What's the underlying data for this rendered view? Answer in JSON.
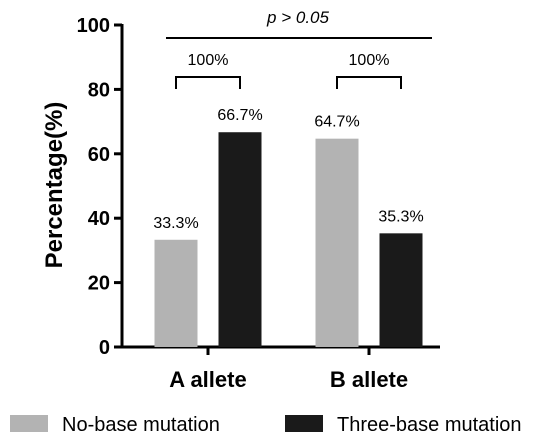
{
  "chart_data": {
    "type": "bar",
    "categories": [
      "A allete",
      "B allete"
    ],
    "series": [
      {
        "name": "No-base mutation",
        "values": [
          33.3,
          64.7
        ],
        "color": "#b3b3b3",
        "labels": [
          "33.3%",
          "64.7%"
        ]
      },
      {
        "name": "Three-base mutation",
        "values": [
          66.7,
          35.3
        ],
        "color": "#1a1a1a",
        "labels": [
          "66.7%",
          "35.3%"
        ]
      }
    ],
    "ylabel": "Percentage(%)",
    "ylim": [
      0,
      100
    ],
    "yticks": [
      0,
      20,
      40,
      60,
      80,
      100
    ],
    "annotations": {
      "overall": "p > 0.05",
      "brackets": [
        "100%",
        "100%"
      ]
    },
    "legend_position": "bottom",
    "grid": false
  }
}
